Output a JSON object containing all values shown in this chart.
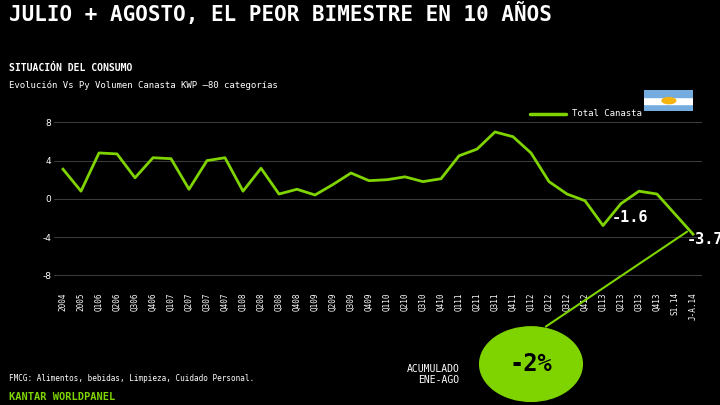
{
  "title": "JULIO + AGOSTO, EL PEOR BIMESTRE EN 10 AÑOS",
  "subtitle1": "SITUACIÓN DEL CONSUMO",
  "subtitle2": "Evolución Vs Py Volumen Canasta KWP –80 categorías",
  "background_color": "#000000",
  "line_color": "#7FD400",
  "text_color": "#ffffff",
  "legend_label": "Total Canasta",
  "footer_text": "FMCG: Alimentos, bebidas, Limpieza, Cuidado Personal.",
  "acumulado_label": "ACUMULADO\nENE-AGO",
  "acumulado_value": "-2%",
  "annotation_1_val": "-1.6",
  "annotation_2_val": "-3.7",
  "yticks": [
    -8.0,
    -4.0,
    0.0,
    4.0,
    8.0
  ],
  "ylim": [
    -9.5,
    10.0
  ],
  "x_labels": [
    "2004",
    "2005",
    "Q106",
    "Q206",
    "Q306",
    "Q406",
    "Q107",
    "Q207",
    "Q307",
    "Q407",
    "Q108",
    "Q208",
    "Q308",
    "Q408",
    "Q109",
    "Q209",
    "Q309",
    "Q409",
    "Q110",
    "Q210",
    "Q310",
    "Q410",
    "Q111",
    "Q211",
    "Q311",
    "Q411",
    "Q112",
    "Q212",
    "Q312",
    "Q412",
    "Q113",
    "Q213",
    "Q313",
    "Q413",
    "S1.14",
    "J-A.14"
  ],
  "y_values": [
    3.1,
    0.8,
    4.8,
    4.7,
    2.2,
    4.3,
    4.2,
    1.0,
    4.0,
    4.3,
    0.8,
    3.2,
    0.5,
    1.0,
    0.4,
    1.5,
    2.7,
    1.9,
    2.0,
    2.3,
    1.8,
    2.1,
    4.5,
    5.2,
    7.0,
    6.5,
    4.8,
    1.8,
    0.5,
    -0.2,
    -2.8,
    -0.5,
    0.8,
    0.5,
    -1.6,
    -3.7
  ],
  "title_fontsize": 15,
  "subtitle1_fontsize": 7,
  "subtitle2_fontsize": 6.5,
  "tick_fontsize": 5.5,
  "ytick_fontsize": 6.5,
  "annotation_fontsize": 11,
  "grid_color": "#555555",
  "flag_blue": "#74ACDF",
  "flag_sun": "#F6B40E",
  "kantar_color": "#7FD400"
}
